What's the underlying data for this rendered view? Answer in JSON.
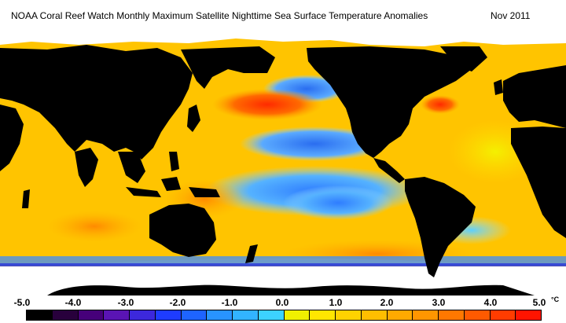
{
  "title": "NOAA Coral Reef Watch Monthly Maximum Satellite Nighttime Sea Surface Temperature Anomalies",
  "date": "Nov 2011",
  "legend": {
    "unit": "°C",
    "labels": [
      "-5.0",
      "-4.0",
      "-3.0",
      "-2.0",
      "-1.0",
      "0.0",
      "1.0",
      "2.0",
      "3.0",
      "4.0",
      "5.0"
    ],
    "colors": [
      "#000000",
      "#28003c",
      "#46007a",
      "#5a14b4",
      "#3c28dc",
      "#1e3cff",
      "#1e64ff",
      "#2894ff",
      "#32b4ff",
      "#3cd2ff",
      "#f0f000",
      "#ffe600",
      "#ffd200",
      "#ffbe00",
      "#ffaa00",
      "#ff9600",
      "#ff7800",
      "#ff5a00",
      "#ff3c00",
      "#ff1400"
    ]
  },
  "colors": {
    "land": "#000000",
    "ice": "#ffffff",
    "ocean_warm": "#ffc400",
    "ocean_cool": "#4aa4ff"
  }
}
